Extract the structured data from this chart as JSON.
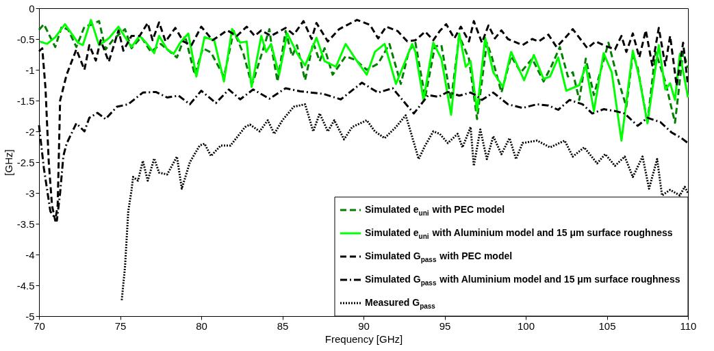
{
  "chart_data": {
    "type": "line",
    "xlabel": "Frequency [GHz]",
    "ylabel": "[GHz]",
    "xlim": [
      70,
      110
    ],
    "ylim": [
      -5,
      0
    ],
    "xticks": [
      70,
      75,
      80,
      85,
      90,
      95,
      100,
      105,
      110
    ],
    "yticks": [
      -5,
      -4.5,
      -4,
      -3.5,
      -3,
      -2.5,
      -2,
      -1.5,
      -1,
      -0.5,
      0
    ],
    "grid": false,
    "legend": "bottom right",
    "marker": "none",
    "series": [
      {
        "name": "Simulated e$_{uni}$ with PEC model",
        "color": "#007f00",
        "line_style": "dashed",
        "x": [
          70.0,
          70.3,
          71.0,
          71.4,
          71.8,
          72.3,
          72.8,
          73.2,
          73.7,
          74.1,
          74.6,
          75.3,
          75.7,
          76.3,
          76.9,
          77.5,
          78.5,
          79.0,
          79.6,
          80.1,
          80.6,
          81.4,
          82.0,
          82.6,
          83.1,
          83.2,
          84.2,
          84.4,
          84.7,
          85.2,
          85.6,
          85.9,
          86.4,
          86.9,
          87.3,
          87.6,
          88.1,
          88.9,
          89.5,
          90.2,
          90.9,
          91.6,
          92.3,
          92.8,
          93.2,
          93.8,
          94.4,
          94.8,
          95.4,
          95.9,
          96.5,
          97.0,
          97.6,
          97.9,
          98.5,
          99.1,
          99.7,
          100.4,
          101.1,
          101.6,
          102.1,
          102.6,
          102.9,
          103.3,
          103.7,
          104.2,
          105.1,
          105.6,
          106.2,
          106.6,
          106.9,
          107.5,
          108.0,
          108.6,
          109.2,
          109.7,
          110.0
        ],
        "values": [
          -0.35,
          -0.26,
          -0.63,
          -0.3,
          -0.35,
          -0.63,
          -0.3,
          -0.27,
          -0.21,
          -0.67,
          -0.5,
          -0.34,
          -0.65,
          -0.47,
          -0.71,
          -0.58,
          -0.8,
          -0.45,
          -1.08,
          -0.65,
          -0.72,
          -1.11,
          -0.37,
          -0.74,
          -1.23,
          -1.19,
          -0.34,
          -0.74,
          -1.19,
          -0.37,
          -0.78,
          -0.6,
          -1.17,
          -0.56,
          -0.86,
          -0.65,
          -1.08,
          -0.78,
          -0.84,
          -1.0,
          -0.9,
          -0.58,
          -1.23,
          -0.69,
          -0.56,
          -1.45,
          -0.62,
          -0.6,
          -1.49,
          -0.45,
          -0.82,
          -1.8,
          -0.56,
          -0.78,
          -1.37,
          -0.78,
          -1.04,
          -0.82,
          -1.19,
          -0.93,
          -0.63,
          -1.11,
          -1.04,
          -1.49,
          -0.82,
          -1.41,
          -0.56,
          -1.08,
          -1.6,
          -0.74,
          -0.97,
          -1.86,
          -0.71,
          -1.19,
          -1.86,
          -0.71,
          -0.97
        ]
      },
      {
        "name": "Simulated e$_{uni}$ with Aluminium model and 15 μm surface roughness",
        "color": "#00ff00",
        "line_style": "solid",
        "x": [
          70.04,
          70.5,
          71.0,
          71.6,
          72.0,
          72.4,
          72.7,
          73.2,
          73.7,
          74.3,
          74.9,
          75.3,
          75.7,
          76.2,
          76.6,
          77.1,
          77.4,
          77.9,
          78.3,
          78.7,
          79.2,
          79.7,
          80.2,
          80.8,
          81.4,
          81.9,
          82.4,
          82.8,
          83.1,
          83.7,
          84.0,
          84.3,
          84.8,
          85.3,
          85.9,
          86.4,
          87.1,
          87.6,
          88.3,
          88.9,
          89.5,
          90.2,
          90.7,
          91.3,
          92.0,
          93.0,
          93.2,
          93.7,
          94.3,
          94.8,
          95.4,
          95.9,
          96.3,
          96.6,
          97.0,
          97.5,
          98.0,
          98.6,
          99.1,
          99.9,
          100.5,
          101.1,
          101.5,
          102.0,
          102.5,
          103.3,
          103.7,
          104.2,
          104.8,
          105.3,
          105.9,
          106.6,
          107.0,
          107.5,
          108.2,
          108.6,
          108.9,
          109.2,
          109.5,
          110.0
        ],
        "values": [
          -0.54,
          -0.58,
          -0.47,
          -0.26,
          -0.41,
          -0.56,
          -0.6,
          -0.19,
          -0.6,
          -0.49,
          -0.3,
          -0.47,
          -0.63,
          -0.45,
          -0.56,
          -0.73,
          -0.45,
          -0.67,
          -0.74,
          -0.56,
          -0.41,
          -1.11,
          -0.47,
          -0.52,
          -1.19,
          -0.34,
          -0.56,
          -0.54,
          -1.28,
          -0.45,
          -0.71,
          -0.58,
          -1.08,
          -0.41,
          -0.73,
          -0.93,
          -0.48,
          -0.86,
          -0.95,
          -0.58,
          -0.82,
          -1.08,
          -0.71,
          -0.58,
          -1.23,
          -0.58,
          -0.71,
          -1.49,
          -0.56,
          -0.82,
          -1.73,
          -0.41,
          -0.95,
          -0.86,
          -1.67,
          -0.48,
          -1.04,
          -1.28,
          -0.71,
          -1.17,
          -0.76,
          -1.15,
          -1.11,
          -0.8,
          -1.34,
          -1.25,
          -0.93,
          -1.67,
          -0.73,
          -1.04,
          -2.15,
          -0.69,
          -1.13,
          -1.87,
          -0.6,
          -1.32,
          -1.22,
          -1.49,
          -0.74,
          -1.45
        ]
      },
      {
        "name": "Simulated G$_{pass}$ with PEC model",
        "color": "#000000",
        "line_style": "dashed",
        "x": [
          70.0,
          70.2,
          70.4,
          70.6,
          70.8,
          71.0,
          71.15,
          71.3,
          71.7,
          72.3,
          72.8,
          73.1,
          73.5,
          73.8,
          74.3,
          74.9,
          75.2,
          75.7,
          76.2,
          76.7,
          77.0,
          77.4,
          77.8,
          78.4,
          78.9,
          79.4,
          80.0,
          80.7,
          81.6,
          82.2,
          82.8,
          83.3,
          83.7,
          84.3,
          85.2,
          85.7,
          86.3,
          86.8,
          87.1,
          87.8,
          88.5,
          89.6,
          90.4,
          90.9,
          91.4,
          92.1,
          92.7,
          93.2,
          93.8,
          94.3,
          94.7,
          95.1,
          95.6,
          96.0,
          96.5,
          96.8,
          97.3,
          97.7,
          98.1,
          98.5,
          98.9,
          99.8,
          100.4,
          100.8,
          101.4,
          101.9,
          102.4,
          102.9,
          103.8,
          104.3,
          104.8,
          105.5,
          105.9,
          106.2,
          106.6,
          107.0,
          107.4,
          107.8,
          108.2,
          108.6,
          108.9,
          109.3,
          109.7,
          110.0
        ],
        "values": [
          -0.7,
          -0.65,
          -1.3,
          -2.5,
          -3.2,
          -3.45,
          -3.2,
          -1.5,
          -1.08,
          -0.67,
          -1.0,
          -0.6,
          -0.85,
          -0.52,
          -0.87,
          -0.36,
          -0.69,
          -0.45,
          -0.45,
          -0.24,
          -0.52,
          -0.23,
          -0.54,
          -0.32,
          -0.54,
          -0.6,
          -0.3,
          -0.52,
          -0.36,
          -0.45,
          -0.3,
          -0.45,
          -0.36,
          -0.45,
          -0.32,
          -0.43,
          -0.21,
          -0.5,
          -0.24,
          -0.54,
          -0.34,
          -0.19,
          -0.27,
          -0.49,
          -0.3,
          -0.37,
          -0.54,
          -0.52,
          -0.38,
          -0.52,
          -0.37,
          -0.26,
          -0.49,
          -0.3,
          -0.54,
          -0.21,
          -0.56,
          -0.28,
          -0.49,
          -0.36,
          -0.5,
          -0.6,
          -0.5,
          -0.54,
          -0.43,
          -0.63,
          -0.49,
          -0.34,
          -0.65,
          -0.54,
          -0.6,
          -0.67,
          -0.45,
          -0.71,
          -0.41,
          -0.8,
          -0.36,
          -0.93,
          -0.32,
          -0.93,
          -0.45,
          -1.26,
          -0.56,
          -1.26
        ]
      },
      {
        "name": "Simulated G$_{pass}$ with Aluminium model and 15 μm surface roughness",
        "color": "#000000",
        "line_style": "dashdot",
        "x": [
          70.0,
          70.3,
          70.7,
          71.1,
          71.3,
          71.5,
          71.7,
          72.3,
          72.8,
          73.1,
          73.6,
          74.1,
          74.8,
          75.5,
          76.4,
          77.2,
          77.9,
          78.6,
          79.3,
          80.0,
          80.9,
          81.7,
          82.4,
          83.2,
          84.2,
          85.2,
          86.1,
          87.5,
          88.6,
          89.9,
          90.9,
          91.8,
          93.1,
          94.0,
          94.6,
          95.2,
          95.9,
          96.6,
          96.9,
          97.3,
          98.0,
          98.9,
          99.8,
          100.7,
          101.4,
          102.0,
          102.7,
          103.5,
          104.1,
          104.8,
          105.5,
          106.1,
          106.9,
          107.5,
          108.3,
          109.0,
          109.6,
          110.0
        ],
        "values": [
          -1.9,
          -2.6,
          -3.3,
          -3.45,
          -3.0,
          -2.4,
          -2.2,
          -1.87,
          -2.0,
          -1.78,
          -1.7,
          -1.8,
          -1.6,
          -1.56,
          -1.37,
          -1.36,
          -1.45,
          -1.42,
          -1.56,
          -1.34,
          -1.54,
          -1.32,
          -1.48,
          -1.32,
          -1.47,
          -1.3,
          -1.35,
          -1.39,
          -1.48,
          -1.21,
          -1.37,
          -1.3,
          -1.71,
          -1.41,
          -1.44,
          -1.36,
          -1.42,
          -1.37,
          -1.41,
          -1.49,
          -1.37,
          -1.56,
          -1.62,
          -1.56,
          -1.58,
          -1.65,
          -1.49,
          -1.56,
          -1.71,
          -1.64,
          -1.67,
          -1.71,
          -1.91,
          -1.78,
          -1.85,
          -2.02,
          -2.11,
          -2.19
        ]
      },
      {
        "name": "Measured G$_{pass}$",
        "color": "#000000",
        "line_style": "dotted",
        "x": [
          75.1,
          75.3,
          75.5,
          75.7,
          75.8,
          76.1,
          76.4,
          76.7,
          77.1,
          77.4,
          77.9,
          78.5,
          78.8,
          79.3,
          79.9,
          80.2,
          80.6,
          81.2,
          81.8,
          82.7,
          83.0,
          83.6,
          84.1,
          84.5,
          85.0,
          85.7,
          86.4,
          86.9,
          87.3,
          87.8,
          88.2,
          88.8,
          89.3,
          90.2,
          90.7,
          91.3,
          92.0,
          92.6,
          92.9,
          93.4,
          93.8,
          94.3,
          94.7,
          95.2,
          95.8,
          96.1,
          96.6,
          96.8,
          97.2,
          97.6,
          98.0,
          98.5,
          99.0,
          99.4,
          99.8,
          100.7,
          101.5,
          102.4,
          102.9,
          103.6,
          104.4,
          104.9,
          105.5,
          106.1,
          106.6,
          107.2,
          107.6,
          108.1,
          108.4,
          108.9,
          109.5,
          109.8,
          110.0
        ],
        "values": [
          -4.74,
          -4.2,
          -3.3,
          -2.96,
          -2.74,
          -2.8,
          -2.48,
          -2.8,
          -2.44,
          -2.67,
          -2.7,
          -2.41,
          -2.93,
          -2.5,
          -2.23,
          -2.2,
          -2.4,
          -2.23,
          -2.23,
          -1.93,
          -1.89,
          -2.0,
          -1.82,
          -2.04,
          -1.82,
          -1.6,
          -1.56,
          -2.0,
          -1.71,
          -2.0,
          -1.82,
          -2.13,
          -1.93,
          -1.82,
          -2.0,
          -2.11,
          -1.93,
          -1.74,
          -2.0,
          -2.45,
          -2.23,
          -2.0,
          -2.04,
          -2.19,
          -2.04,
          -2.26,
          -1.93,
          -2.56,
          -1.97,
          -2.45,
          -2.08,
          -2.37,
          -2.11,
          -2.45,
          -2.19,
          -2.15,
          -2.26,
          -2.15,
          -2.41,
          -2.26,
          -2.52,
          -2.37,
          -2.56,
          -2.41,
          -2.74,
          -2.41,
          -2.93,
          -2.45,
          -3.04,
          -2.95,
          -3.04,
          -2.9,
          -3.0
        ]
      }
    ]
  }
}
